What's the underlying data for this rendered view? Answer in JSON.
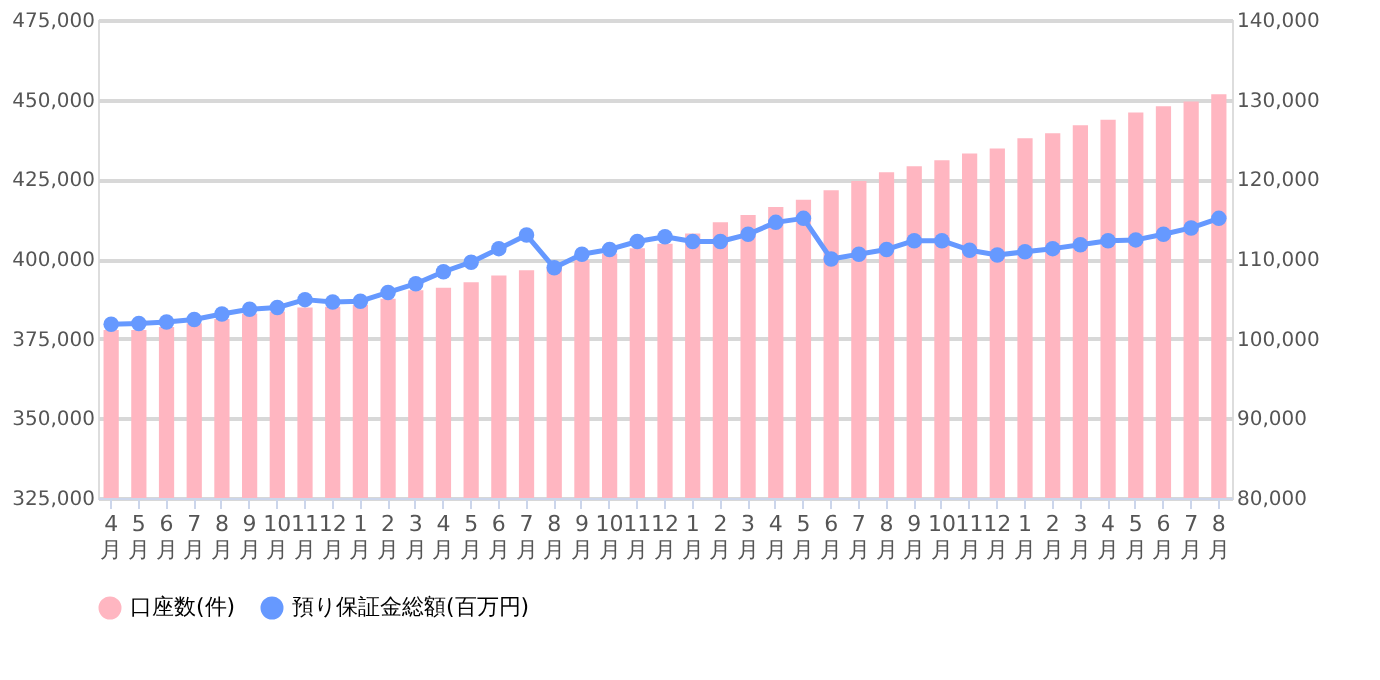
{
  "chart_data": {
    "type": "bar",
    "categories": [
      "4月",
      "5月",
      "6月",
      "7月",
      "8月",
      "9月",
      "10月",
      "11月",
      "12月",
      "1月",
      "2月",
      "3月",
      "4月",
      "5月",
      "6月",
      "7月",
      "8月",
      "9月",
      "10月",
      "11月",
      "12月",
      "1月",
      "2月",
      "3月",
      "4月",
      "5月",
      "6月",
      "7月",
      "8月",
      "9月",
      "10月",
      "11月",
      "12月",
      "1月",
      "2月",
      "3月",
      "4月",
      "5月",
      "6月",
      "7月",
      "8月"
    ],
    "series": [
      {
        "name": "口座数(件)",
        "color": "#ffb6c1",
        "values": [
          377700,
          377700,
          378700,
          379800,
          381200,
          382900,
          383500,
          384800,
          385000,
          385600,
          387500,
          390200,
          391000,
          392700,
          394800,
          396500,
          397500,
          399600,
          401700,
          403400,
          404800,
          408000,
          411500,
          413800,
          416300,
          418600,
          421600,
          424500,
          427200,
          429100,
          431000,
          433100,
          434700,
          437900,
          439500,
          442000,
          443700,
          446000,
          447900,
          449400,
          451700
        ]
      },
      {
        "name": "預り保証金総額(百万円)",
        "type": "line",
        "axis": "y2",
        "color": "#6699ff",
        "marker": "circle",
        "values": [
          101800,
          101900,
          102100,
          102400,
          103100,
          103700,
          103900,
          104900,
          104600,
          104700,
          105800,
          106900,
          108400,
          109600,
          111300,
          113000,
          108900,
          110600,
          111200,
          112200,
          112800,
          112200,
          112200,
          113100,
          114600,
          115100,
          110000,
          110600,
          111200,
          112300,
          112300,
          111100,
          110500,
          110900,
          111300,
          111800,
          112300,
          112400,
          113100,
          113900,
          115100
        ]
      }
    ],
    "ylim": [
      325000,
      475000
    ],
    "yticks": [
      {
        "value": 325000,
        "label": "325,000"
      },
      {
        "value": 350000,
        "label": "350,000"
      },
      {
        "value": 375000,
        "label": "375,000"
      },
      {
        "value": 400000,
        "label": "400,000"
      },
      {
        "value": 425000,
        "label": "425,000"
      },
      {
        "value": 450000,
        "label": "450,000"
      },
      {
        "value": 475000,
        "label": "475,000"
      }
    ],
    "y2lim": [
      80000,
      140000
    ],
    "y2ticks": [
      {
        "value": 80000,
        "label": "80,000"
      },
      {
        "value": 90000,
        "label": "90,000"
      },
      {
        "value": 100000,
        "label": "100,000"
      },
      {
        "value": 110000,
        "label": "110,000"
      },
      {
        "value": 120000,
        "label": "120,000"
      },
      {
        "value": 130000,
        "label": "130,000"
      },
      {
        "value": 140000,
        "label": "140,000"
      }
    ],
    "grid": "y",
    "legend": "bottom"
  }
}
